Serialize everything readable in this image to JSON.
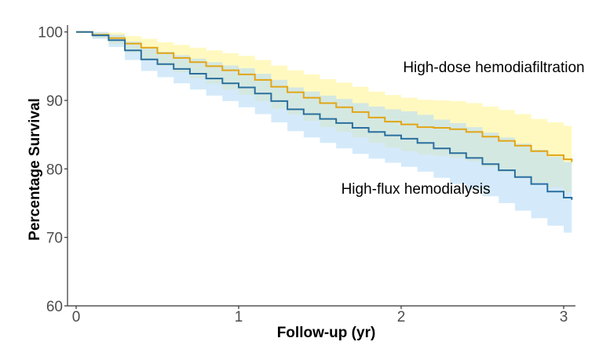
{
  "chart_data": {
    "type": "line",
    "title": "",
    "xlabel": "Follow-up (yr)",
    "ylabel": "Percentage Survival",
    "xlim": [
      0,
      3.05
    ],
    "ylim": [
      60,
      101
    ],
    "xticks": [
      0,
      1,
      2,
      3
    ],
    "yticks": [
      60,
      70,
      80,
      90,
      100
    ],
    "grid": false,
    "series": [
      {
        "name": "High-dose hemodiafiltration",
        "color": "#E2A516",
        "band_color": "#FFF7A8",
        "x": [
          0,
          0.1,
          0.2,
          0.3,
          0.4,
          0.5,
          0.6,
          0.7,
          0.8,
          0.9,
          1.0,
          1.1,
          1.2,
          1.3,
          1.4,
          1.5,
          1.6,
          1.7,
          1.8,
          1.9,
          2.0,
          2.1,
          2.2,
          2.3,
          2.4,
          2.5,
          2.6,
          2.7,
          2.8,
          2.9,
          3.0,
          3.05
        ],
        "y": [
          100,
          99.6,
          99.1,
          98.3,
          97.7,
          96.9,
          96.2,
          95.6,
          95.0,
          94.4,
          93.8,
          93.0,
          92.0,
          91.2,
          90.4,
          89.6,
          89.0,
          88.3,
          87.5,
          86.9,
          86.5,
          86.1,
          86.0,
          85.8,
          85.4,
          84.7,
          84.1,
          83.4,
          82.6,
          82.0,
          81.4,
          81.0
        ],
        "lower": [
          100,
          99.1,
          98.2,
          97.0,
          96.1,
          95.0,
          94.1,
          93.2,
          92.4,
          91.6,
          90.8,
          89.9,
          88.8,
          87.9,
          87.0,
          86.1,
          85.4,
          84.6,
          83.8,
          83.1,
          82.6,
          82.1,
          81.9,
          81.6,
          81.1,
          80.3,
          79.6,
          78.8,
          78.0,
          77.3,
          76.6,
          76.2
        ],
        "upper": [
          100,
          100,
          99.9,
          99.4,
          99.0,
          98.5,
          98.1,
          97.7,
          97.3,
          96.9,
          96.5,
          95.9,
          95.1,
          94.4,
          93.8,
          93.1,
          92.6,
          92.0,
          91.3,
          90.8,
          90.4,
          90.1,
          90.0,
          89.9,
          89.6,
          89.1,
          88.6,
          88.0,
          87.3,
          86.8,
          86.3,
          85.9
        ]
      },
      {
        "name": "High-flux hemodialysis",
        "color": "#2A6F9E",
        "band_color": "#B9DDF7",
        "x": [
          0,
          0.1,
          0.2,
          0.3,
          0.4,
          0.5,
          0.6,
          0.7,
          0.8,
          0.9,
          1.0,
          1.1,
          1.2,
          1.3,
          1.4,
          1.5,
          1.6,
          1.7,
          1.8,
          1.9,
          2.0,
          2.1,
          2.2,
          2.3,
          2.4,
          2.5,
          2.6,
          2.7,
          2.8,
          2.9,
          3.0,
          3.05
        ],
        "y": [
          100,
          99.5,
          98.8,
          97.3,
          96.0,
          95.3,
          94.6,
          93.9,
          93.2,
          92.5,
          91.9,
          91.0,
          89.9,
          88.7,
          88.0,
          87.3,
          86.7,
          86.0,
          85.4,
          84.9,
          84.4,
          83.8,
          83.0,
          82.3,
          81.6,
          80.7,
          79.8,
          78.8,
          77.8,
          76.7,
          75.8,
          75.5
        ],
        "lower": [
          100,
          99.0,
          97.8,
          95.9,
          94.3,
          93.4,
          92.5,
          91.6,
          90.7,
          89.9,
          89.0,
          88.0,
          86.8,
          85.5,
          84.6,
          83.8,
          83.0,
          82.2,
          81.5,
          80.9,
          80.3,
          79.6,
          78.7,
          77.8,
          77.0,
          76.0,
          75.0,
          73.9,
          72.8,
          71.7,
          70.7,
          70.4
        ],
        "upper": [
          100,
          100,
          99.6,
          98.6,
          97.7,
          97.1,
          96.6,
          96.1,
          95.6,
          95.1,
          94.7,
          93.9,
          93.0,
          91.9,
          91.3,
          90.7,
          90.2,
          89.6,
          89.1,
          88.7,
          88.4,
          87.9,
          87.2,
          86.7,
          86.1,
          85.3,
          84.6,
          83.7,
          82.8,
          81.8,
          81.0,
          80.7
        ]
      }
    ],
    "annotations": [
      {
        "text": "High-dose hemodiafiltration",
        "x": 2.57,
        "y": 94.1,
        "series": 0
      },
      {
        "text": "High-flux hemodialysis",
        "x": 2.09,
        "y": 76.4,
        "series": 1
      }
    ]
  }
}
